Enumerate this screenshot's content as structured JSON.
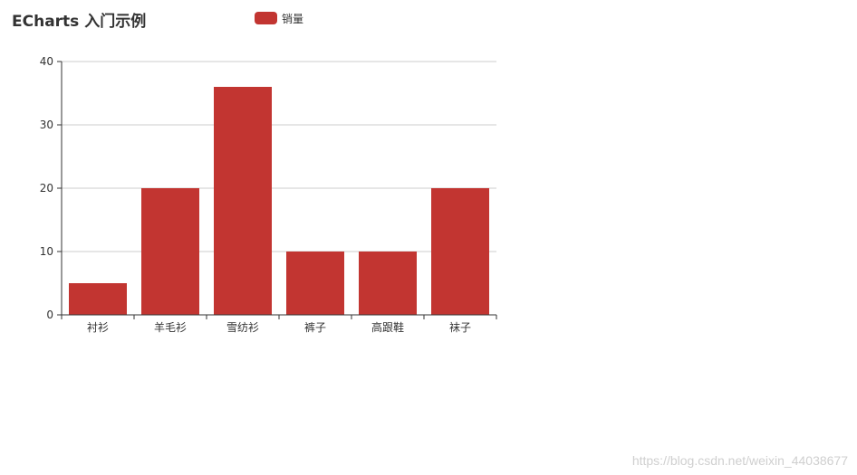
{
  "chart_data": {
    "type": "bar",
    "title": "ECharts 入门示例",
    "xlabel": "",
    "ylabel": "",
    "categories": [
      "衬衫",
      "羊毛衫",
      "雪纺衫",
      "裤子",
      "高跟鞋",
      "袜子"
    ],
    "series": [
      {
        "name": "销量",
        "values": [
          5,
          20,
          36,
          10,
          10,
          20
        ],
        "color": "#c23531"
      }
    ],
    "ylim": [
      0,
      40
    ],
    "yticks": [
      0,
      10,
      20,
      30,
      40
    ],
    "grid": true,
    "legend_position": "top"
  },
  "watermark": "https://blog.csdn.net/weixin_44038677"
}
